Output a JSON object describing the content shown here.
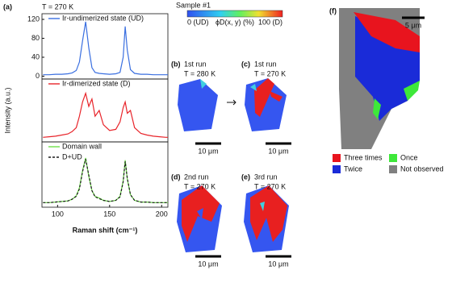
{
  "panel_a": {
    "label": "(a)",
    "temperature": "T = 270 K",
    "y_title": "Intensity (a.u.)"
  },
  "chart_data": [
    {
      "type": "line",
      "xlim": [
        85,
        206
      ],
      "ylim": [
        -6,
        132
      ],
      "yticks": [
        0,
        40,
        80,
        120
      ],
      "x": [
        86,
        92,
        98,
        104,
        110,
        114,
        118,
        121,
        124,
        127,
        130,
        133,
        136,
        140,
        144,
        150,
        156,
        160,
        163,
        165,
        167,
        170,
        174,
        180,
        186,
        192,
        198,
        204,
        206
      ],
      "series": [
        {
          "name": "Ir-undimerized state (UD)",
          "color": "#3a6fe0",
          "values": [
            3,
            3,
            4,
            4,
            5,
            7,
            12,
            30,
            75,
            115,
            60,
            18,
            8,
            6,
            5,
            4,
            5,
            8,
            40,
            105,
            55,
            14,
            6,
            4,
            4,
            3,
            3,
            3,
            3
          ]
        }
      ]
    },
    {
      "type": "line",
      "xlim": [
        85,
        206
      ],
      "ylim": [
        0,
        110
      ],
      "x": [
        86,
        92,
        98,
        104,
        110,
        114,
        118,
        121,
        124,
        127,
        130,
        133,
        136,
        140,
        144,
        150,
        156,
        160,
        163,
        165,
        167,
        170,
        174,
        180,
        186,
        192,
        198,
        204,
        206
      ],
      "series": [
        {
          "name": "Ir-dimerized state (D)",
          "color": "#e8242a",
          "values": [
            8,
            9,
            10,
            12,
            14,
            18,
            25,
            45,
            70,
            85,
            62,
            75,
            45,
            55,
            30,
            20,
            22,
            35,
            60,
            70,
            50,
            55,
            25,
            15,
            12,
            10,
            9,
            8,
            8
          ]
        }
      ]
    },
    {
      "type": "line",
      "xlim": [
        85,
        206
      ],
      "ylim": [
        -4,
        110
      ],
      "xticks": [
        100,
        150,
        200
      ],
      "x_label": "Raman shift (cm⁻¹)",
      "x": [
        86,
        92,
        98,
        104,
        110,
        114,
        118,
        121,
        124,
        127,
        130,
        133,
        136,
        140,
        144,
        150,
        156,
        160,
        163,
        165,
        167,
        170,
        174,
        180,
        186,
        192,
        198,
        204,
        206
      ],
      "series": [
        {
          "name": "Domain wall",
          "color": "#6ee04a",
          "dashed": false,
          "values": [
            4,
            4,
            5,
            6,
            7,
            10,
            16,
            30,
            60,
            82,
            50,
            25,
            15,
            12,
            8,
            6,
            8,
            15,
            42,
            78,
            45,
            18,
            8,
            5,
            5,
            4,
            4,
            4,
            4
          ]
        },
        {
          "name": "D+UD",
          "color": "#1a1a1a",
          "dashed": true,
          "values": [
            4,
            4,
            5,
            6,
            7,
            10,
            15,
            28,
            58,
            80,
            52,
            25,
            14,
            11,
            8,
            6,
            8,
            14,
            40,
            76,
            47,
            18,
            8,
            5,
            5,
            4,
            4,
            4,
            4
          ]
        }
      ]
    }
  ],
  "sample": "Sample #1",
  "colorbar": {
    "min_label": "0 (UD)",
    "title": "ϕD(x, y) (%)",
    "max_label": "100 (D)"
  },
  "maps": [
    {
      "label": "(b)",
      "run": "1st run",
      "temperature": "T = 280 K",
      "scale": "10 μm"
    },
    {
      "label": "(c)",
      "run": "1st run",
      "temperature": "T = 270 K",
      "scale": "10 μm"
    },
    {
      "label": "(d)",
      "run": "2nd run",
      "temperature": "T = 270 K",
      "scale": "10 μm"
    },
    {
      "label": "(e)",
      "run": "3rd run",
      "temperature": "T = 270 K",
      "scale": "10 μm"
    }
  ],
  "panel_f": {
    "label": "(f)",
    "scale": "5 μm",
    "legend": [
      {
        "name": "Three times",
        "color": "#e8141e"
      },
      {
        "name": "Once",
        "color": "#3ee83a"
      },
      {
        "name": "Twice",
        "color": "#1a2bd8"
      },
      {
        "name": "Not observed",
        "color": "#808080"
      }
    ]
  }
}
